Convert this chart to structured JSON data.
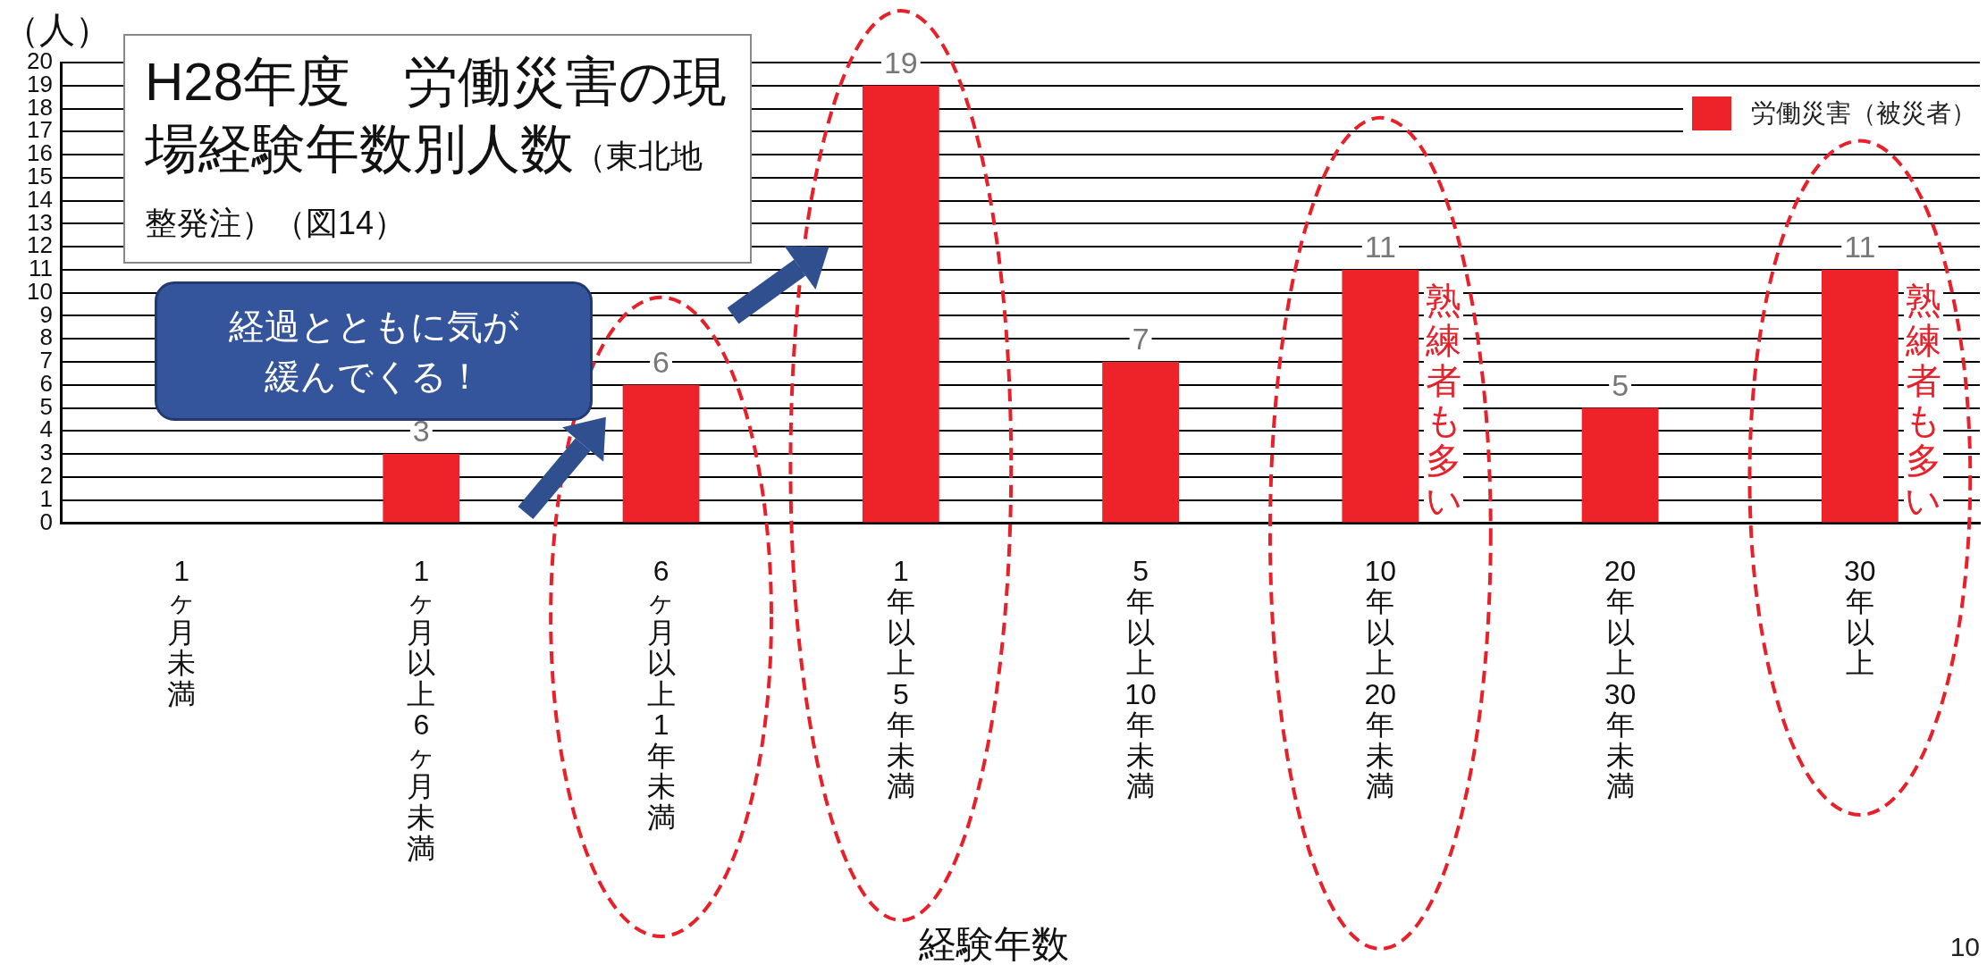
{
  "chart_data": {
    "type": "bar",
    "title": "H28年度　労働災害の現場経験年数別人数",
    "subtitle": "（東北地整発注）（図14）",
    "xlabel": "経験年数",
    "ylabel": "（人）",
    "categories": [
      "1ヶ月未満",
      "1ヶ月以上6ヶ月未満",
      "6ヶ月以上1年未満",
      "1年以上5年未満",
      "5年以上10年未満",
      "10年以上20年未満",
      "20年以上30年未満",
      "30年以上"
    ],
    "series": [
      {
        "name": "労働災害（被災者）",
        "color": "#ee2229",
        "values": [
          0,
          3,
          6,
          19,
          7,
          11,
          5,
          11
        ],
        "value_labels": [
          null,
          "3",
          "6",
          "19",
          "7",
          "11",
          "5",
          "11"
        ]
      }
    ],
    "ylim": [
      0,
      20
    ],
    "yticks": [
      0,
      1,
      2,
      3,
      4,
      5,
      6,
      7,
      8,
      9,
      10,
      11,
      12,
      13,
      14,
      15,
      16,
      17,
      18,
      19,
      20
    ],
    "grid": "y",
    "legend": "top right",
    "annotations": [
      "経過とともに気が緩んでくる！",
      {
        "text": "熟練者も多い",
        "x": "10年以上20年未満",
        "y": 11
      },
      {
        "text": "熟練者も多い",
        "x": "30年以上",
        "y": 11
      },
      "10"
    ]
  }
}
